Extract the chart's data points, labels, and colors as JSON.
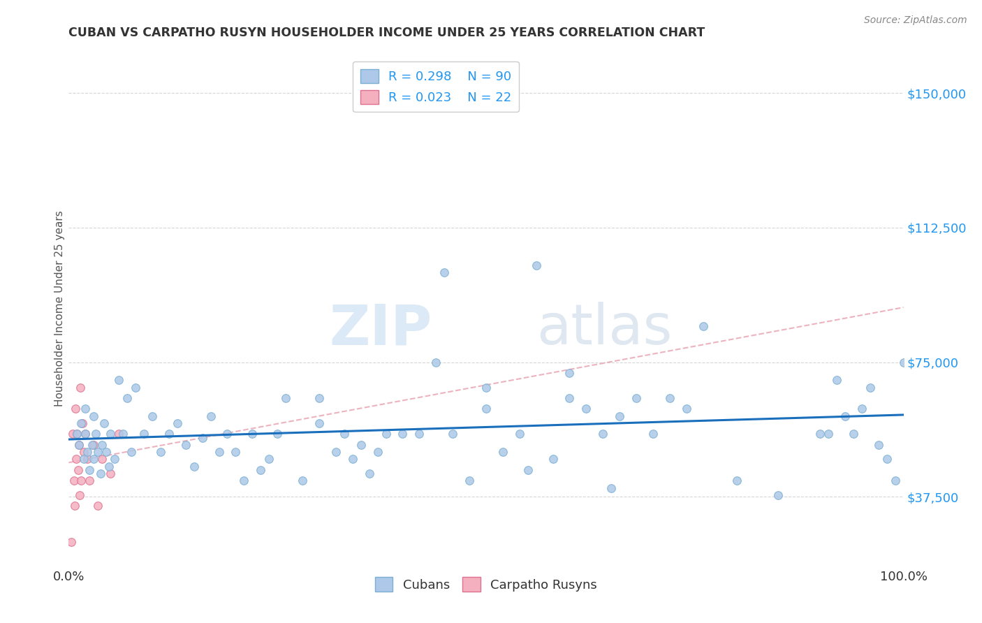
{
  "title": "CUBAN VS CARPATHO RUSYN HOUSEHOLDER INCOME UNDER 25 YEARS CORRELATION CHART",
  "source": "Source: ZipAtlas.com",
  "ylabel": "Householder Income Under 25 years",
  "xlim": [
    0.0,
    100.0
  ],
  "ylim": [
    18000,
    162000
  ],
  "yticks": [
    37500,
    75000,
    112500,
    150000
  ],
  "ytick_labels": [
    "$37,500",
    "$75,000",
    "$112,500",
    "$150,000"
  ],
  "xticks": [
    0.0,
    100.0
  ],
  "xtick_labels": [
    "0.0%",
    "100.0%"
  ],
  "cubans_R": 0.298,
  "cubans_N": 90,
  "carpatho_R": 0.023,
  "carpatho_N": 22,
  "cubans_color": "#adc8e8",
  "cubans_edge": "#7aafd4",
  "carpatho_color": "#f4b0bf",
  "carpatho_edge": "#e07090",
  "trendline_cubans_color": "#1a6fbd",
  "trendline_carpatho_color": "#e08090",
  "watermark_zip": "ZIP",
  "watermark_atlas": "atlas",
  "cubans_x": [
    1.0,
    1.2,
    1.5,
    1.8,
    2.0,
    2.0,
    2.2,
    2.5,
    2.8,
    3.0,
    3.0,
    3.2,
    3.5,
    3.8,
    4.0,
    4.2,
    4.5,
    4.8,
    5.0,
    5.5,
    6.0,
    6.5,
    7.0,
    7.5,
    8.0,
    9.0,
    10.0,
    11.0,
    12.0,
    13.0,
    14.0,
    15.0,
    16.0,
    17.0,
    18.0,
    19.0,
    20.0,
    21.0,
    22.0,
    23.0,
    24.0,
    25.0,
    26.0,
    28.0,
    30.0,
    30.0,
    32.0,
    33.0,
    34.0,
    35.0,
    36.0,
    37.0,
    38.0,
    40.0,
    42.0,
    44.0,
    45.0,
    46.0,
    48.0,
    50.0,
    50.0,
    52.0,
    54.0,
    55.0,
    56.0,
    58.0,
    60.0,
    60.0,
    62.0,
    64.0,
    65.0,
    66.0,
    68.0,
    70.0,
    72.0,
    74.0,
    76.0,
    80.0,
    85.0,
    90.0,
    91.0,
    92.0,
    93.0,
    94.0,
    95.0,
    96.0,
    97.0,
    98.0,
    99.0,
    100.0
  ],
  "cubans_y": [
    55000,
    52000,
    58000,
    48000,
    62000,
    55000,
    50000,
    45000,
    52000,
    48000,
    60000,
    55000,
    50000,
    44000,
    52000,
    58000,
    50000,
    46000,
    55000,
    48000,
    70000,
    55000,
    65000,
    50000,
    68000,
    55000,
    60000,
    50000,
    55000,
    58000,
    52000,
    46000,
    54000,
    60000,
    50000,
    55000,
    50000,
    42000,
    55000,
    45000,
    48000,
    55000,
    65000,
    42000,
    58000,
    65000,
    50000,
    55000,
    48000,
    52000,
    44000,
    50000,
    55000,
    55000,
    55000,
    75000,
    100000,
    55000,
    42000,
    62000,
    68000,
    50000,
    55000,
    45000,
    102000,
    48000,
    65000,
    72000,
    62000,
    55000,
    40000,
    60000,
    65000,
    55000,
    65000,
    62000,
    85000,
    42000,
    38000,
    55000,
    55000,
    70000,
    60000,
    55000,
    62000,
    68000,
    52000,
    48000,
    42000,
    75000
  ],
  "carpatho_x": [
    0.3,
    0.5,
    0.6,
    0.7,
    0.8,
    0.9,
    1.0,
    1.1,
    1.2,
    1.3,
    1.4,
    1.5,
    1.6,
    1.8,
    2.0,
    2.2,
    2.5,
    3.0,
    3.5,
    4.0,
    5.0,
    6.0
  ],
  "carpatho_y": [
    25000,
    55000,
    42000,
    35000,
    62000,
    48000,
    55000,
    45000,
    52000,
    38000,
    68000,
    42000,
    58000,
    50000,
    55000,
    48000,
    42000,
    52000,
    35000,
    48000,
    44000,
    55000
  ]
}
